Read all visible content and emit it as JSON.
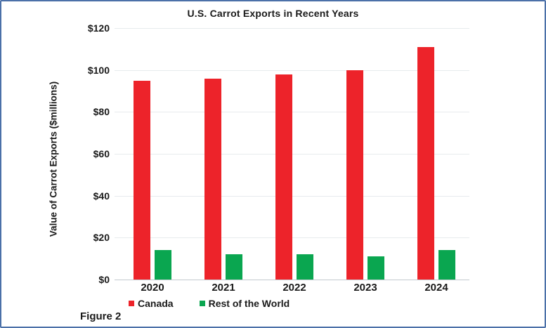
{
  "figure": {
    "caption": "Figure 2",
    "frame_border_color": "#4B70A8"
  },
  "chart_data": {
    "type": "bar",
    "title": "U.S. Carrot Exports in Recent Years",
    "xlabel": "",
    "ylabel": "Value of Carrot Exports ($millions)",
    "categories": [
      "2020",
      "2021",
      "2022",
      "2023",
      "2024"
    ],
    "series": [
      {
        "name": "Canada",
        "color": "#ED232A",
        "values": [
          95,
          96,
          98,
          100,
          111
        ]
      },
      {
        "name": "Rest of the World",
        "color": "#0AA650",
        "values": [
          14,
          12,
          12,
          11,
          14
        ]
      }
    ],
    "ylim": [
      0,
      120
    ],
    "ytick_step": 20,
    "ytick_labels": [
      "$0",
      "$20",
      "$40",
      "$60",
      "$80",
      "$100",
      "$120"
    ],
    "grid": true,
    "gridline_color": "#e7ebed",
    "legend_position": "bottom",
    "caption": "Figure 2"
  }
}
